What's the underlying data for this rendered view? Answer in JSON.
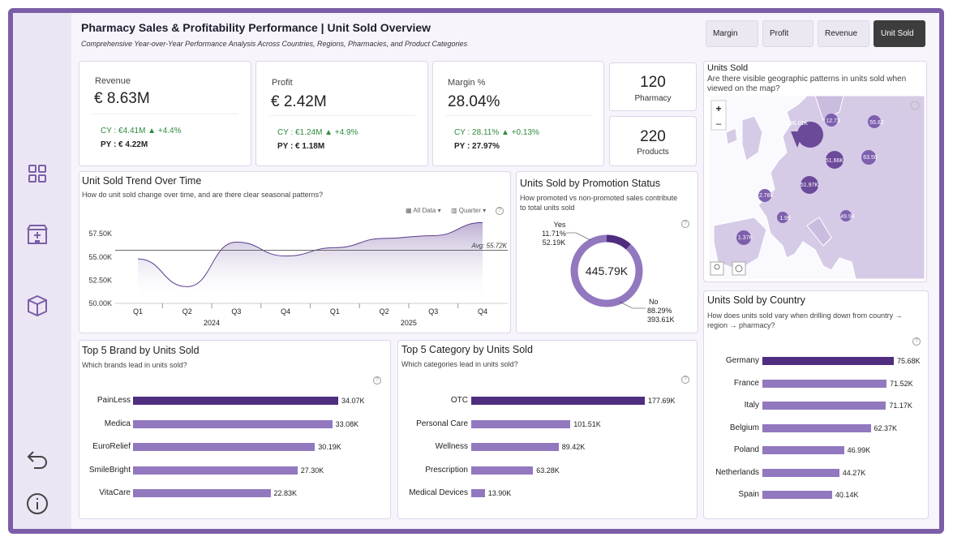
{
  "header": {
    "title": "Pharmacy Sales & Profitability Performance | Unit Sold Overview",
    "subtitle": "Comprehensive Year-over-Year Performance Analysis Across Countries, Regions, Pharmacies, and Product Categories"
  },
  "metric_tabs": [
    {
      "label": "Margin",
      "active": false
    },
    {
      "label": "Profit",
      "active": false
    },
    {
      "label": "Revenue",
      "active": false
    },
    {
      "label": "Unit Sold",
      "active": true
    }
  ],
  "sidebar": {
    "items": [
      {
        "icon": "dashboard-grid-icon"
      },
      {
        "icon": "pharmacy-store-icon"
      },
      {
        "icon": "product-box-icon"
      }
    ],
    "back_icon": "back-arrow-icon",
    "info_icon": "info-icon"
  },
  "kpis": {
    "revenue": {
      "label": "Revenue",
      "value": "€ 8.63M",
      "cy": "CY : €4.41M ▲ +4.4%",
      "py": "PY : € 4.22M"
    },
    "profit": {
      "label": "Profit",
      "value": "€ 2.42M",
      "cy": "CY : €1.24M ▲ +4.9%",
      "py": "PY : € 1.18M"
    },
    "margin": {
      "label": "Margin %",
      "value": "28.04%",
      "cy": "CY : 28.11% ▲ +0.13%",
      "py": "PY : 27.97%"
    }
  },
  "counts": {
    "pharmacy": {
      "value": "120",
      "label": "Pharmacy"
    },
    "products": {
      "value": "220",
      "label": "Products"
    }
  },
  "trend": {
    "title": "Unit Sold Trend Over Time",
    "subtitle": "How do unit sold change over time, and are there clear seasonal patterns?",
    "filter_data": "All Data",
    "filter_period": "Quarter",
    "avg_label": "Avg: 55.72K",
    "chart_data": {
      "type": "line",
      "categories": [
        "Q1",
        "Q2",
        "Q3",
        "Q4",
        "Q1",
        "Q2",
        "Q3",
        "Q4"
      ],
      "years": [
        "2024",
        "2025"
      ],
      "y_tick_labels": [
        "57.50K",
        "55.00K",
        "52.50K",
        "50.00K"
      ],
      "y_ticks": [
        57500,
        55000,
        52500,
        50000
      ],
      "ylim": [
        50000,
        59000
      ],
      "values": [
        54800,
        51800,
        56600,
        55100,
        56000,
        57000,
        57300,
        58700
      ],
      "average": 55720
    }
  },
  "promotion": {
    "title": "Units Sold by Promotion Status",
    "subtitle_line1": "How promoted vs non-promoted sales contribute",
    "subtitle_line2": "to total units sold",
    "total_label": "445.79K",
    "chart_data": {
      "type": "pie",
      "labels": [
        "Yes",
        "No"
      ],
      "values": [
        52190,
        393610
      ],
      "percent_labels": [
        "11.71%",
        "88.29%"
      ],
      "value_labels": [
        "52.19K",
        "393.61K"
      ]
    }
  },
  "map": {
    "title": "Units Sold",
    "subtitle_line1": "Are there visible geographic patterns in units sold when",
    "subtitle_line2": "viewed on the map?",
    "zoom_in": "+",
    "zoom_out": "–",
    "pins": [
      "136.01K",
      "12.73",
      "55.82",
      "51.66K",
      "63.56",
      "51.97K",
      "2.78K",
      "1.95",
      "49.94",
      "1.37K"
    ]
  },
  "brands": {
    "title": "Top 5 Brand by Units Sold",
    "subtitle": "Which brands lead in units sold?",
    "chart_data": {
      "type": "bar",
      "categories": [
        "PainLess",
        "Medica",
        "EuroRelief",
        "SmileBright",
        "VitaCare"
      ],
      "values": [
        34070,
        33080,
        30190,
        27300,
        22830
      ],
      "value_labels": [
        "34.07K",
        "33.08K",
        "30.19K",
        "27.30K",
        "22.83K"
      ]
    }
  },
  "categories": {
    "title": "Top 5 Category by Units Sold",
    "subtitle": "Which categories lead in units sold?",
    "chart_data": {
      "type": "bar",
      "categories": [
        "OTC",
        "Personal Care",
        "Wellness",
        "Prescription",
        "Medical Devices"
      ],
      "values": [
        177690,
        101510,
        89420,
        63280,
        13900
      ],
      "value_labels": [
        "177.69K",
        "101.51K",
        "89.42K",
        "63.28K",
        "13.90K"
      ]
    }
  },
  "countries": {
    "title": "Units Sold by Country",
    "subtitle_line1": "How does units sold vary when drilling down from country →",
    "subtitle_line2": "region → pharmacy?",
    "chart_data": {
      "type": "bar",
      "categories": [
        "Germany",
        "France",
        "Italy",
        "Belgium",
        "Poland",
        "Netherlands",
        "Spain"
      ],
      "values": [
        75680,
        71520,
        71170,
        62370,
        46990,
        44270,
        40140
      ],
      "value_labels": [
        "75.68K",
        "71.52K",
        "71.17K",
        "62.37K",
        "46.99K",
        "44.27K",
        "40.14K"
      ]
    }
  }
}
